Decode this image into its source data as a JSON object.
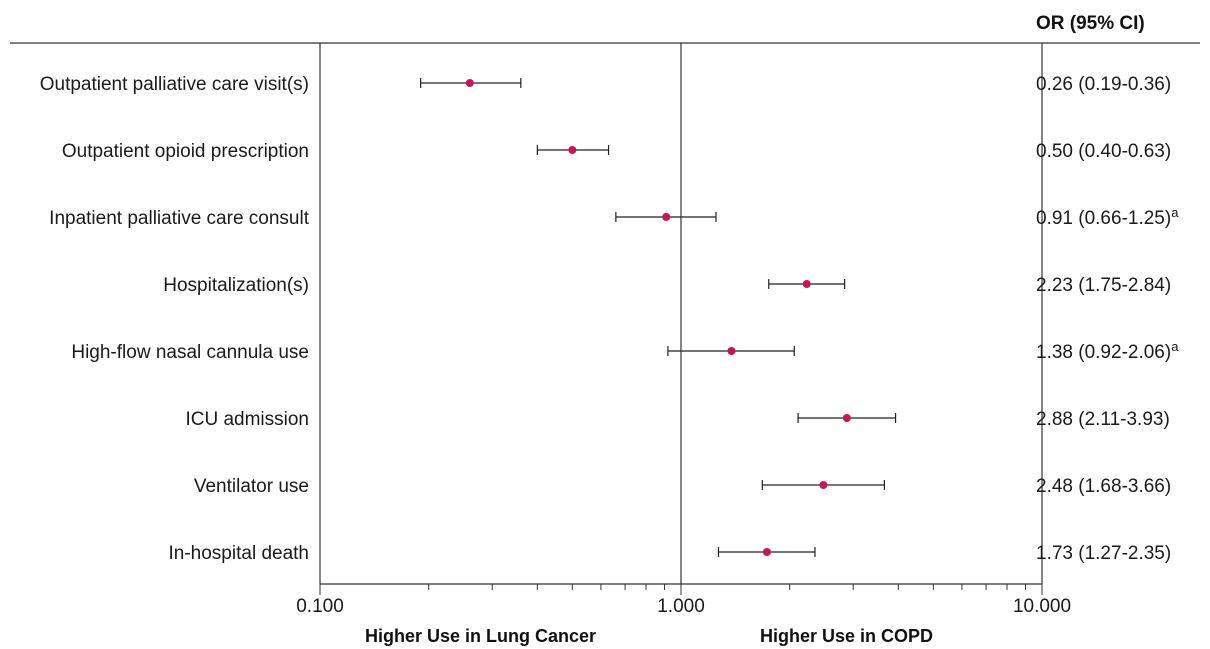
{
  "chart_data": {
    "type": "forest",
    "x_scale": "log",
    "xlim": [
      0.1,
      10
    ],
    "x_ticks": [
      "0.100",
      "1.000",
      "10.000"
    ],
    "reference_value": 1,
    "column_header": "OR (95% CI)",
    "direction_labels": {
      "left": "Higher Use in Lung Cancer",
      "right": "Higher Use in COPD"
    },
    "marker_color": "#c2185b",
    "rows": [
      {
        "label": "Outpatient palliative care visit(s)",
        "or": 0.26,
        "lo": 0.19,
        "hi": 0.36,
        "text": "0.26 (0.19-0.36)",
        "note": ""
      },
      {
        "label": "Outpatient opioid prescription",
        "or": 0.5,
        "lo": 0.4,
        "hi": 0.63,
        "text": "0.50 (0.40-0.63)",
        "note": ""
      },
      {
        "label": "Inpatient palliative care consult",
        "or": 0.91,
        "lo": 0.66,
        "hi": 1.25,
        "text": "0.91 (0.66-1.25)",
        "note": "a"
      },
      {
        "label": "Hospitalization(s)",
        "or": 2.23,
        "lo": 1.75,
        "hi": 2.84,
        "text": "2.23 (1.75-2.84)",
        "note": ""
      },
      {
        "label": "High-flow nasal cannula use",
        "or": 1.38,
        "lo": 0.92,
        "hi": 2.06,
        "text": "1.38 (0.92-2.06)",
        "note": "a"
      },
      {
        "label": "ICU admission",
        "or": 2.88,
        "lo": 2.11,
        "hi": 3.93,
        "text": "2.88 (2.11-3.93)",
        "note": ""
      },
      {
        "label": "Ventilator use",
        "or": 2.48,
        "lo": 1.68,
        "hi": 3.66,
        "text": "2.48 (1.68-3.66)",
        "note": ""
      },
      {
        "label": "In-hospital death",
        "or": 1.73,
        "lo": 1.27,
        "hi": 2.35,
        "text": "1.73 (1.27-2.35)",
        "note": ""
      }
    ]
  }
}
